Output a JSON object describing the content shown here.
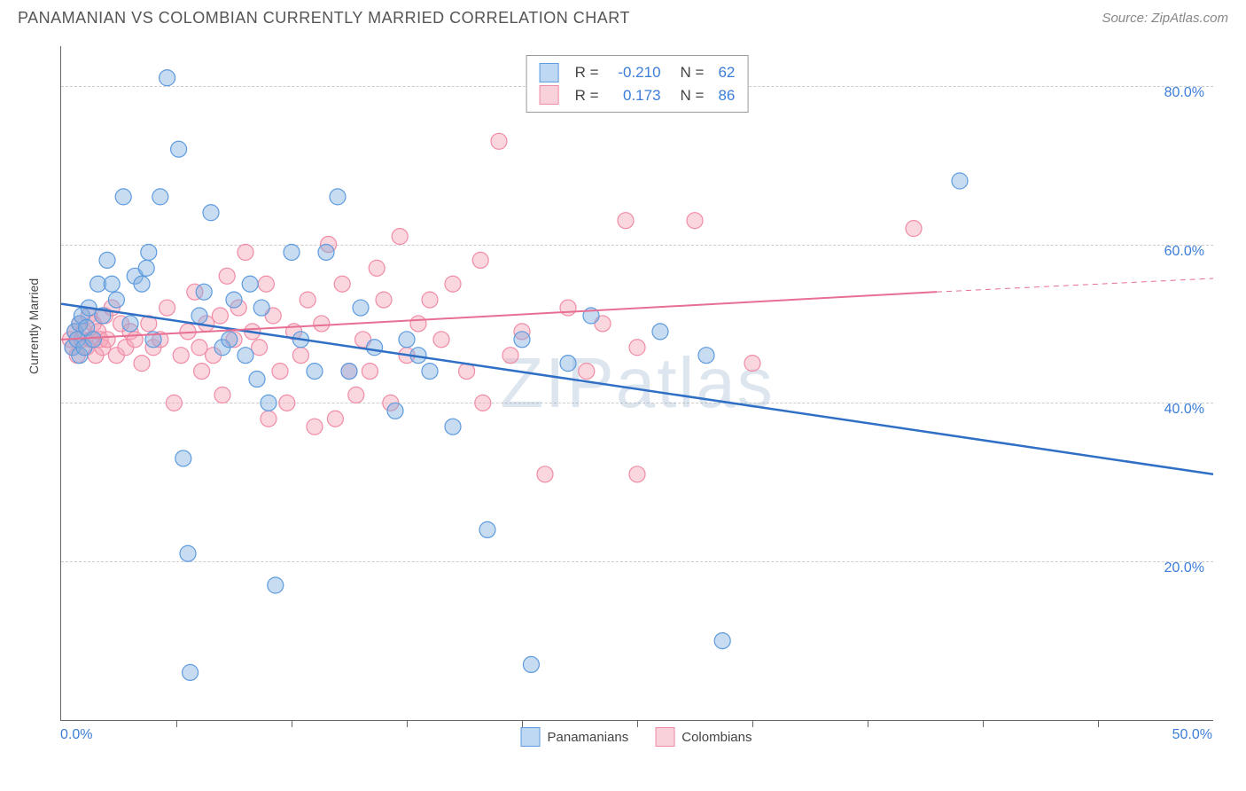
{
  "title": "PANAMANIAN VS COLOMBIAN CURRENTLY MARRIED CORRELATION CHART",
  "source": "Source: ZipAtlas.com",
  "watermark": "ZIPatlas",
  "ylabel": "Currently Married",
  "chart": {
    "type": "scatter",
    "xlim": [
      0,
      50
    ],
    "ylim": [
      0,
      85
    ],
    "x_ticklabels": {
      "min": "0.0%",
      "max": "50.0%"
    },
    "y_ticks": [
      20,
      40,
      60,
      80
    ],
    "y_ticklabels": [
      "20.0%",
      "40.0%",
      "60.0%",
      "80.0%"
    ],
    "x_minor_ticks": [
      5,
      10,
      15,
      20,
      25,
      30,
      35,
      40,
      45
    ],
    "background_color": "#ffffff",
    "grid_color": "#cccccc",
    "marker_radius": 9,
    "colors": {
      "blue_fill": "rgba(130,175,225,0.45)",
      "blue_stroke": "#5d9bde",
      "pink_fill": "rgba(245,165,185,0.45)",
      "pink_stroke": "#f08ca5",
      "trend_blue": "#2f6fc5",
      "trend_pink": "#e76f94",
      "axis_label": "#3b7dd8"
    },
    "legend": {
      "series1": {
        "label": "Panamanians",
        "R": "-0.210",
        "N": "62",
        "swatch": "blue"
      },
      "series2": {
        "label": "Colombians",
        "R": "0.173",
        "N": "86",
        "swatch": "pink"
      }
    },
    "trend_lines": {
      "blue": {
        "x1": 0,
        "y1": 52.5,
        "x2": 50,
        "y2": 31
      },
      "pink": {
        "x1": 0,
        "y1": 48,
        "x2": 38,
        "y2": 54
      },
      "pink_extended": {
        "x1": 38,
        "y1": 54,
        "x2": 50,
        "y2": 55.7
      }
    },
    "blue_points": [
      [
        0.5,
        47
      ],
      [
        0.6,
        49
      ],
      [
        0.7,
        48
      ],
      [
        0.8,
        50
      ],
      [
        0.8,
        46
      ],
      [
        0.9,
        51
      ],
      [
        1.0,
        47
      ],
      [
        1.1,
        49.5
      ],
      [
        1.2,
        52
      ],
      [
        1.4,
        48
      ],
      [
        1.6,
        55
      ],
      [
        1.8,
        51
      ],
      [
        2.0,
        58
      ],
      [
        2.2,
        55
      ],
      [
        2.4,
        53
      ],
      [
        2.7,
        66
      ],
      [
        3.0,
        50
      ],
      [
        3.2,
        56
      ],
      [
        3.5,
        55
      ],
      [
        3.7,
        57
      ],
      [
        3.8,
        59
      ],
      [
        4.0,
        48
      ],
      [
        4.3,
        66
      ],
      [
        4.6,
        81
      ],
      [
        5.1,
        72
      ],
      [
        5.3,
        33
      ],
      [
        5.5,
        21
      ],
      [
        5.6,
        6
      ],
      [
        6.0,
        51
      ],
      [
        6.2,
        54
      ],
      [
        6.5,
        64
      ],
      [
        7.0,
        47
      ],
      [
        7.3,
        48
      ],
      [
        7.5,
        53
      ],
      [
        8.0,
        46
      ],
      [
        8.2,
        55
      ],
      [
        8.5,
        43
      ],
      [
        8.7,
        52
      ],
      [
        9.0,
        40
      ],
      [
        9.3,
        17
      ],
      [
        10.0,
        59
      ],
      [
        10.4,
        48
      ],
      [
        11.0,
        44
      ],
      [
        11.5,
        59
      ],
      [
        12.0,
        66
      ],
      [
        12.5,
        44
      ],
      [
        13.0,
        52
      ],
      [
        13.6,
        47
      ],
      [
        14.5,
        39
      ],
      [
        15.0,
        48
      ],
      [
        15.5,
        46
      ],
      [
        16.0,
        44
      ],
      [
        17.0,
        37
      ],
      [
        18.5,
        24
      ],
      [
        20.0,
        48
      ],
      [
        20.4,
        7
      ],
      [
        22.0,
        45
      ],
      [
        23.0,
        51
      ],
      [
        26.0,
        49
      ],
      [
        28.0,
        46
      ],
      [
        28.7,
        10
      ],
      [
        39.0,
        68
      ]
    ],
    "pink_points": [
      [
        0.4,
        48
      ],
      [
        0.5,
        47
      ],
      [
        0.6,
        49
      ],
      [
        0.7,
        46
      ],
      [
        0.8,
        50
      ],
      [
        0.9,
        48
      ],
      [
        1.0,
        49
      ],
      [
        1.1,
        47
      ],
      [
        1.2,
        51
      ],
      [
        1.3,
        48
      ],
      [
        1.4,
        50
      ],
      [
        1.5,
        46
      ],
      [
        1.6,
        49
      ],
      [
        1.7,
        48
      ],
      [
        1.8,
        47
      ],
      [
        1.9,
        51
      ],
      [
        2.0,
        48
      ],
      [
        2.2,
        52
      ],
      [
        2.4,
        46
      ],
      [
        2.6,
        50
      ],
      [
        2.8,
        47
      ],
      [
        3.0,
        49
      ],
      [
        3.2,
        48
      ],
      [
        3.5,
        45
      ],
      [
        3.8,
        50
      ],
      [
        4.0,
        47
      ],
      [
        4.3,
        48
      ],
      [
        4.6,
        52
      ],
      [
        4.9,
        40
      ],
      [
        5.2,
        46
      ],
      [
        5.5,
        49
      ],
      [
        5.8,
        54
      ],
      [
        6.0,
        47
      ],
      [
        6.3,
        50
      ],
      [
        6.6,
        46
      ],
      [
        6.9,
        51
      ],
      [
        7.2,
        56
      ],
      [
        7.5,
        48
      ],
      [
        7.7,
        52
      ],
      [
        8.0,
        59
      ],
      [
        8.3,
        49
      ],
      [
        8.6,
        47
      ],
      [
        8.9,
        55
      ],
      [
        9.2,
        51
      ],
      [
        9.5,
        44
      ],
      [
        9.8,
        40
      ],
      [
        10.1,
        49
      ],
      [
        10.4,
        46
      ],
      [
        10.7,
        53
      ],
      [
        11.0,
        37
      ],
      [
        11.3,
        50
      ],
      [
        11.6,
        60
      ],
      [
        11.9,
        38
      ],
      [
        12.2,
        55
      ],
      [
        12.5,
        44
      ],
      [
        12.8,
        41
      ],
      [
        13.1,
        48
      ],
      [
        13.4,
        44
      ],
      [
        13.7,
        57
      ],
      [
        14.0,
        53
      ],
      [
        14.3,
        40
      ],
      [
        14.7,
        61
      ],
      [
        15.0,
        46
      ],
      [
        15.5,
        50
      ],
      [
        16.0,
        53
      ],
      [
        16.5,
        48
      ],
      [
        17.0,
        55
      ],
      [
        17.6,
        44
      ],
      [
        18.2,
        58
      ],
      [
        19.0,
        73
      ],
      [
        19.5,
        46
      ],
      [
        20.0,
        49
      ],
      [
        21.0,
        31
      ],
      [
        22.0,
        52
      ],
      [
        22.8,
        44
      ],
      [
        23.5,
        50
      ],
      [
        24.5,
        63
      ],
      [
        25.0,
        47
      ],
      [
        25.0,
        31
      ],
      [
        27.5,
        63
      ],
      [
        30.0,
        45
      ],
      [
        37.0,
        62
      ],
      [
        18.3,
        40
      ],
      [
        6.1,
        44
      ],
      [
        7.0,
        41
      ],
      [
        9.0,
        38
      ]
    ]
  }
}
